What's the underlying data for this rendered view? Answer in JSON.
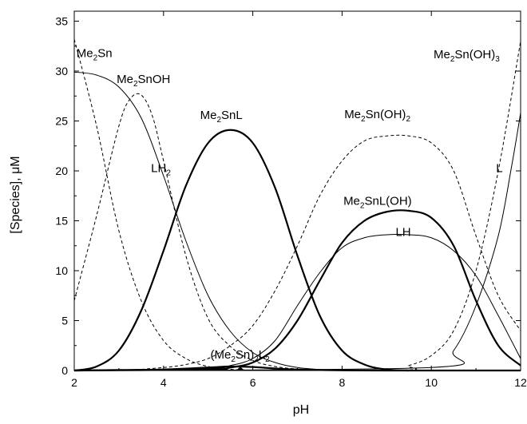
{
  "chart_data": {
    "type": "line",
    "xlabel": "pH",
    "ylabel": "[Species], μM",
    "xlim": [
      2,
      12
    ],
    "ylim": [
      0,
      36
    ],
    "xticks": [
      2,
      4,
      6,
      8,
      10,
      12
    ],
    "yticks": [
      0,
      5,
      10,
      15,
      20,
      25,
      30,
      35
    ],
    "grid": false,
    "series": [
      {
        "name": "Me2Sn",
        "style": "dashed",
        "x": [
          2.0,
          2.5,
          3.0,
          3.5,
          4.0,
          4.5,
          5.0,
          5.5,
          6.0,
          6.5,
          7.0
        ],
        "y": [
          33.2,
          24.5,
          14.0,
          7.0,
          3.0,
          1.2,
          0.4,
          0.12,
          0.03,
          0.0,
          0.0
        ]
      },
      {
        "name": "Me2SnOH",
        "style": "dashed",
        "x": [
          2.0,
          2.5,
          3.0,
          3.25,
          3.5,
          3.75,
          4.0,
          4.5,
          5.0,
          5.5,
          6.0,
          6.5,
          7.0,
          7.5,
          8.0
        ],
        "y": [
          7.0,
          15.5,
          24.5,
          27.2,
          27.6,
          25.5,
          21.0,
          11.5,
          5.2,
          2.4,
          1.0,
          0.4,
          0.15,
          0.05,
          0.0
        ]
      },
      {
        "name": "LH2",
        "style": "thin",
        "x": [
          2.0,
          2.5,
          3.0,
          3.5,
          4.0,
          4.5,
          5.0,
          5.5,
          6.0,
          6.5,
          7.0,
          7.5,
          8.0
        ],
        "y": [
          29.9,
          29.6,
          28.4,
          25.3,
          19.5,
          13.0,
          7.5,
          3.9,
          1.8,
          0.8,
          0.3,
          0.1,
          0.0
        ]
      },
      {
        "name": "Me2SnL",
        "style": "thick",
        "x": [
          2.0,
          2.5,
          3.0,
          3.5,
          4.0,
          4.5,
          5.0,
          5.5,
          6.0,
          6.5,
          7.0,
          7.5,
          8.0,
          8.5,
          9.0,
          9.5
        ],
        "y": [
          0.0,
          0.4,
          2.0,
          6.0,
          12.0,
          18.5,
          22.8,
          24.1,
          22.8,
          18.3,
          11.5,
          5.5,
          2.0,
          0.6,
          0.1,
          0.0
        ]
      },
      {
        "name": "Me2Sn(OH)2",
        "style": "dashed",
        "x": [
          2.0,
          3.0,
          4.0,
          4.5,
          5.0,
          5.5,
          6.0,
          6.5,
          7.0,
          7.5,
          8.0,
          8.5,
          9.0,
          9.5,
          10.0,
          10.5,
          11.0,
          11.5,
          12.0
        ],
        "y": [
          0.0,
          0.0,
          0.3,
          0.6,
          1.2,
          2.5,
          4.5,
          8.0,
          12.5,
          17.5,
          21.0,
          23.0,
          23.5,
          23.5,
          22.8,
          20.0,
          13.5,
          7.5,
          4.0
        ]
      },
      {
        "name": "Me2SnL(OH)",
        "style": "thick",
        "x": [
          2.0,
          5.0,
          5.5,
          6.0,
          6.5,
          7.0,
          7.5,
          8.0,
          8.5,
          9.0,
          9.5,
          10.0,
          10.5,
          11.0,
          11.5,
          12.0
        ],
        "y": [
          0.0,
          0.1,
          0.3,
          0.8,
          2.2,
          5.0,
          9.0,
          12.8,
          15.0,
          15.9,
          16.0,
          15.3,
          12.5,
          7.0,
          2.5,
          0.5
        ]
      },
      {
        "name": "LH",
        "style": "thin",
        "x": [
          2.0,
          5.0,
          5.5,
          6.0,
          6.5,
          7.0,
          7.5,
          8.0,
          8.5,
          9.0,
          9.5,
          10.0,
          10.5,
          11.0,
          11.5,
          12.0
        ],
        "y": [
          0.0,
          0.2,
          0.5,
          1.2,
          3.0,
          6.5,
          9.8,
          12.3,
          13.3,
          13.6,
          13.6,
          13.3,
          12.0,
          9.5,
          5.5,
          1.2
        ]
      },
      {
        "name": "L",
        "style": "thin",
        "x": [
          2.0,
          10.0,
          10.5,
          11.0,
          11.5,
          11.8,
          12.0
        ],
        "y": [
          0.0,
          0.3,
          2.0,
          6.5,
          13.5,
          20.5,
          25.8
        ]
      },
      {
        "name": "Me2Sn(OH)3",
        "style": "dashed",
        "x": [
          2.0,
          9.0,
          9.5,
          10.0,
          10.5,
          11.0,
          11.5,
          12.0
        ],
        "y": [
          0.0,
          0.0,
          0.5,
          1.5,
          4.0,
          10.0,
          20.0,
          33.0
        ]
      },
      {
        "name": "(Me2Sn)2L2",
        "style": "thick",
        "x": [
          2.0,
          3.0,
          4.0,
          5.0,
          5.5,
          6.0,
          6.5,
          7.0,
          8.0,
          9.0,
          12.0
        ],
        "y": [
          0.0,
          0.05,
          0.1,
          0.3,
          0.4,
          0.35,
          0.2,
          0.1,
          0.02,
          0.0,
          0.0
        ]
      }
    ],
    "labels": [
      {
        "series": "Me2Sn",
        "main": "Me",
        "sub": "2",
        "tail": "Sn",
        "sub2": "",
        "tail2": "",
        "x": 2.05,
        "y": 31.4
      },
      {
        "series": "Me2SnOH",
        "main": "Me",
        "sub": "2",
        "tail": "SnOH",
        "sub2": "",
        "tail2": "",
        "x": 2.95,
        "y": 28.8
      },
      {
        "series": "LH2",
        "main": "LH",
        "sub": "2",
        "tail": "",
        "sub2": "",
        "tail2": "",
        "x": 3.72,
        "y": 19.9
      },
      {
        "series": "Me2SnL",
        "main": "Me",
        "sub": "2",
        "tail": "SnL",
        "sub2": "",
        "tail2": "",
        "x": 4.82,
        "y": 25.2
      },
      {
        "series": "Me2Sn(OH)2",
        "main": "Me",
        "sub": "2",
        "tail": "Sn(OH)",
        "sub2": "2",
        "tail2": "",
        "x": 8.05,
        "y": 25.3
      },
      {
        "series": "Me2SnL(OH)",
        "main": "Me",
        "sub": "2",
        "tail": "SnL(OH)",
        "sub2": "",
        "tail2": "",
        "x": 8.03,
        "y": 16.6
      },
      {
        "series": "LH",
        "main": "LH",
        "sub": "",
        "tail": "",
        "sub2": "",
        "tail2": "",
        "x": 9.2,
        "y": 13.5
      },
      {
        "series": "L",
        "main": "L",
        "sub": "",
        "tail": "",
        "sub2": "",
        "tail2": "",
        "x": 11.45,
        "y": 19.9
      },
      {
        "series": "Me2Sn(OH)3",
        "main": "Me",
        "sub": "2",
        "tail": "Sn(OH)",
        "sub2": "3",
        "tail2": "",
        "x": 10.05,
        "y": 31.3
      },
      {
        "series": "(Me2Sn)2L2",
        "main": "(Me",
        "sub": "2",
        "tail": "Sn)",
        "sub2": "2",
        "tail2": "L",
        "sub3": "2",
        "x": 5.05,
        "y": 1.2
      }
    ]
  }
}
